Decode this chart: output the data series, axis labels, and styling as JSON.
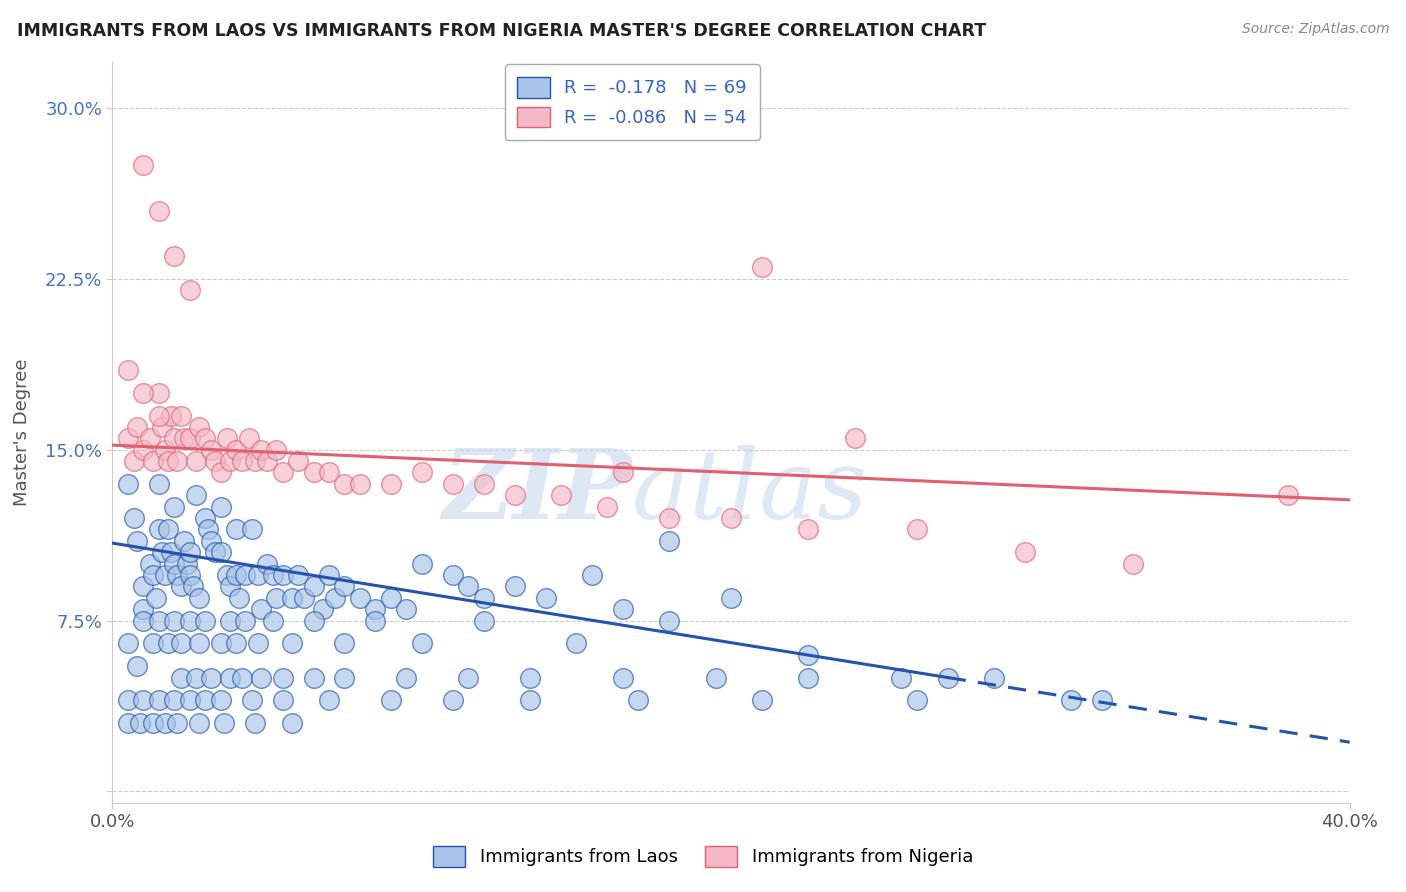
{
  "title": "IMMIGRANTS FROM LAOS VS IMMIGRANTS FROM NIGERIA MASTER'S DEGREE CORRELATION CHART",
  "source": "Source: ZipAtlas.com",
  "ylabel": "Master's Degree",
  "xlim": [
    0.0,
    0.4
  ],
  "ylim": [
    -0.005,
    0.32
  ],
  "xtick_positions": [
    0.0,
    0.4
  ],
  "xtick_labels": [
    "0.0%",
    "40.0%"
  ],
  "ytick_positions": [
    0.0,
    0.075,
    0.15,
    0.225,
    0.3
  ],
  "ytick_labels": [
    "",
    "7.5%",
    "15.0%",
    "22.5%",
    "30.0%"
  ],
  "blue_R": -0.178,
  "blue_N": 69,
  "pink_R": -0.086,
  "pink_N": 54,
  "blue_color": "#a8c4e8",
  "pink_color": "#f5b8c8",
  "blue_line_color": "#2255aa",
  "pink_line_color": "#e06070",
  "blue_line_solid_end": 0.27,
  "watermark_zip": "ZIP",
  "watermark_atlas": "atlas",
  "legend_blue_label": "Immigrants from Laos",
  "legend_pink_label": "Immigrants from Nigeria",
  "blue_x": [
    0.005,
    0.007,
    0.008,
    0.01,
    0.01,
    0.012,
    0.013,
    0.014,
    0.015,
    0.015,
    0.016,
    0.017,
    0.018,
    0.019,
    0.02,
    0.02,
    0.021,
    0.022,
    0.023,
    0.024,
    0.025,
    0.025,
    0.026,
    0.027,
    0.028,
    0.03,
    0.031,
    0.032,
    0.033,
    0.035,
    0.035,
    0.037,
    0.038,
    0.04,
    0.04,
    0.041,
    0.043,
    0.045,
    0.047,
    0.048,
    0.05,
    0.052,
    0.053,
    0.055,
    0.058,
    0.06,
    0.062,
    0.065,
    0.068,
    0.07,
    0.072,
    0.075,
    0.08,
    0.085,
    0.09,
    0.095,
    0.1,
    0.11,
    0.115,
    0.12,
    0.13,
    0.14,
    0.155,
    0.165,
    0.18,
    0.2,
    0.225,
    0.27,
    0.32
  ],
  "blue_y": [
    0.135,
    0.12,
    0.11,
    0.09,
    0.08,
    0.1,
    0.095,
    0.085,
    0.135,
    0.115,
    0.105,
    0.095,
    0.115,
    0.105,
    0.125,
    0.1,
    0.095,
    0.09,
    0.11,
    0.1,
    0.105,
    0.095,
    0.09,
    0.13,
    0.085,
    0.12,
    0.115,
    0.11,
    0.105,
    0.125,
    0.105,
    0.095,
    0.09,
    0.115,
    0.095,
    0.085,
    0.095,
    0.115,
    0.095,
    0.08,
    0.1,
    0.095,
    0.085,
    0.095,
    0.085,
    0.095,
    0.085,
    0.09,
    0.08,
    0.095,
    0.085,
    0.09,
    0.085,
    0.08,
    0.085,
    0.08,
    0.1,
    0.095,
    0.09,
    0.085,
    0.09,
    0.085,
    0.095,
    0.08,
    0.11,
    0.085,
    0.06,
    0.05,
    0.04
  ],
  "blue_extra_x": [
    0.005,
    0.008,
    0.01,
    0.013,
    0.015,
    0.018,
    0.02,
    0.022,
    0.025,
    0.028,
    0.03,
    0.035,
    0.038,
    0.04,
    0.043,
    0.047,
    0.052,
    0.058,
    0.065,
    0.075,
    0.085,
    0.1,
    0.12,
    0.15,
    0.18,
    0.022,
    0.027,
    0.032,
    0.038,
    0.042,
    0.048,
    0.055,
    0.065,
    0.075,
    0.095,
    0.115,
    0.135,
    0.165,
    0.195,
    0.225,
    0.255,
    0.285,
    0.005,
    0.01,
    0.015,
    0.02,
    0.025,
    0.03,
    0.035,
    0.045,
    0.055,
    0.07,
    0.09,
    0.11,
    0.135,
    0.17,
    0.21,
    0.26,
    0.31,
    0.005,
    0.009,
    0.013,
    0.017,
    0.021,
    0.028,
    0.036,
    0.046,
    0.058
  ],
  "blue_extra_y": [
    0.065,
    0.055,
    0.075,
    0.065,
    0.075,
    0.065,
    0.075,
    0.065,
    0.075,
    0.065,
    0.075,
    0.065,
    0.075,
    0.065,
    0.075,
    0.065,
    0.075,
    0.065,
    0.075,
    0.065,
    0.075,
    0.065,
    0.075,
    0.065,
    0.075,
    0.05,
    0.05,
    0.05,
    0.05,
    0.05,
    0.05,
    0.05,
    0.05,
    0.05,
    0.05,
    0.05,
    0.05,
    0.05,
    0.05,
    0.05,
    0.05,
    0.05,
    0.04,
    0.04,
    0.04,
    0.04,
    0.04,
    0.04,
    0.04,
    0.04,
    0.04,
    0.04,
    0.04,
    0.04,
    0.04,
    0.04,
    0.04,
    0.04,
    0.04,
    0.03,
    0.03,
    0.03,
    0.03,
    0.03,
    0.03,
    0.03,
    0.03,
    0.03
  ],
  "pink_x": [
    0.005,
    0.007,
    0.008,
    0.01,
    0.012,
    0.013,
    0.015,
    0.016,
    0.017,
    0.018,
    0.019,
    0.02,
    0.021,
    0.022,
    0.023,
    0.025,
    0.027,
    0.028,
    0.03,
    0.032,
    0.033,
    0.035,
    0.037,
    0.038,
    0.04,
    0.042,
    0.044,
    0.046,
    0.048,
    0.05,
    0.053,
    0.055,
    0.06,
    0.065,
    0.07,
    0.075,
    0.08,
    0.09,
    0.1,
    0.11,
    0.12,
    0.13,
    0.145,
    0.16,
    0.18,
    0.2,
    0.225,
    0.26,
    0.295,
    0.33,
    0.005,
    0.01,
    0.015,
    0.38
  ],
  "pink_y": [
    0.155,
    0.145,
    0.16,
    0.15,
    0.155,
    0.145,
    0.175,
    0.16,
    0.15,
    0.145,
    0.165,
    0.155,
    0.145,
    0.165,
    0.155,
    0.155,
    0.145,
    0.16,
    0.155,
    0.15,
    0.145,
    0.14,
    0.155,
    0.145,
    0.15,
    0.145,
    0.155,
    0.145,
    0.15,
    0.145,
    0.15,
    0.14,
    0.145,
    0.14,
    0.14,
    0.135,
    0.135,
    0.135,
    0.14,
    0.135,
    0.135,
    0.13,
    0.13,
    0.125,
    0.12,
    0.12,
    0.115,
    0.115,
    0.105,
    0.1,
    0.185,
    0.175,
    0.165,
    0.13
  ],
  "pink_extra_x": [
    0.01,
    0.015,
    0.02,
    0.025,
    0.165,
    0.21,
    0.24
  ],
  "pink_extra_y": [
    0.275,
    0.255,
    0.235,
    0.22,
    0.14,
    0.23,
    0.155
  ]
}
